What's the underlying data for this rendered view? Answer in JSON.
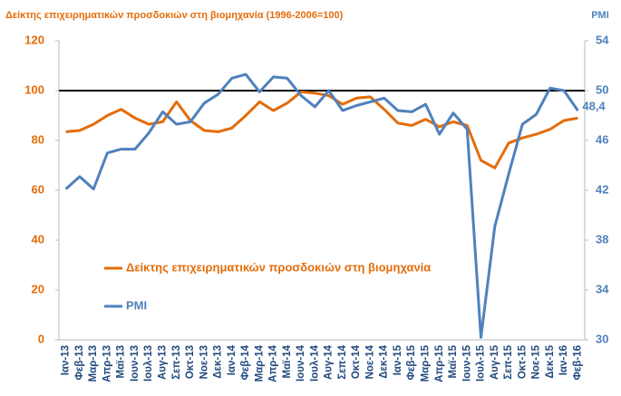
{
  "chart_data": {
    "type": "line",
    "title": "Δείκτης επιχειρηματικών προσδοκιών στη βιομηχανία (1996-2006=100)",
    "y2_title": "PMI",
    "categories": [
      "Ιαν-13",
      "Φεβ-13",
      "Μαρ-13",
      "Απρ-13",
      "Μαϊ-13",
      "Ιουν-13",
      "Ιουλ-13",
      "Αυγ-13",
      "Σεπ-13",
      "Οκτ-13",
      "Νοε-13",
      "Δεκ-13",
      "Ιαν-14",
      "Φεβ-14",
      "Μαρ-14",
      "Απρ-14",
      "Μαϊ-14",
      "Ιουν-14",
      "Ιουλ-14",
      "Αυγ-14",
      "Σεπ-14",
      "Οκτ-14",
      "Νοε-14",
      "Δεκ-14",
      "Ιαν-15",
      "Φεβ-15",
      "Μαρ-15",
      "Απρ-15",
      "Μαϊ-15",
      "Ιουν-15",
      "Ιουλ-15",
      "Αυγ-15",
      "Σεπ-15",
      "Οκτ-15",
      "Νοε-15",
      "Δεκ-15",
      "Ιαν-16",
      "Φεβ-16"
    ],
    "series": [
      {
        "name": "Δείκτης επιχειρηματικών προσδοκιών στη βιομηχανία",
        "color": "#e46c0a",
        "values": [
          83.5,
          84,
          86.5,
          90,
          92.5,
          89,
          86.5,
          87.5,
          95.5,
          88,
          84,
          83.5,
          85,
          90,
          95.5,
          92,
          95,
          99.5,
          99,
          98,
          94.5,
          97,
          97.5,
          92.5,
          87,
          86,
          88.5,
          85.5,
          87.5,
          86,
          72,
          69,
          79,
          81,
          82.5,
          84.5,
          88,
          89
        ]
      },
      {
        "name": "PMI",
        "color": "#4f81bd",
        "axis": "y2",
        "values": [
          42.1,
          43.1,
          42.1,
          45,
          45.3,
          45.3,
          46.6,
          48.3,
          47.3,
          47.5,
          49,
          49.7,
          51,
          51.3,
          49.9,
          51.1,
          51,
          49.6,
          48.7,
          50,
          48.4,
          48.8,
          49.1,
          49.4,
          48.4,
          48.3,
          48.9,
          46.5,
          48.2,
          46.9,
          30.2,
          39.1,
          43.3,
          47.3,
          48.1,
          50.2,
          50,
          48.4
        ],
        "value_labels": [
          null,
          null,
          null,
          null,
          null,
          null,
          null,
          null,
          null,
          null,
          null,
          null,
          null,
          null,
          null,
          null,
          null,
          null,
          null,
          null,
          null,
          null,
          null,
          null,
          null,
          null,
          null,
          null,
          null,
          null,
          null,
          null,
          null,
          null,
          null,
          null,
          null,
          "48,4"
        ]
      }
    ],
    "ylim": [
      0,
      120
    ],
    "yticks": [
      0,
      20,
      40,
      60,
      80,
      100,
      120
    ],
    "y2lim": [
      30,
      54
    ],
    "y2ticks": [
      30,
      34,
      38,
      42,
      46,
      50,
      54
    ],
    "reference_line": 100
  }
}
